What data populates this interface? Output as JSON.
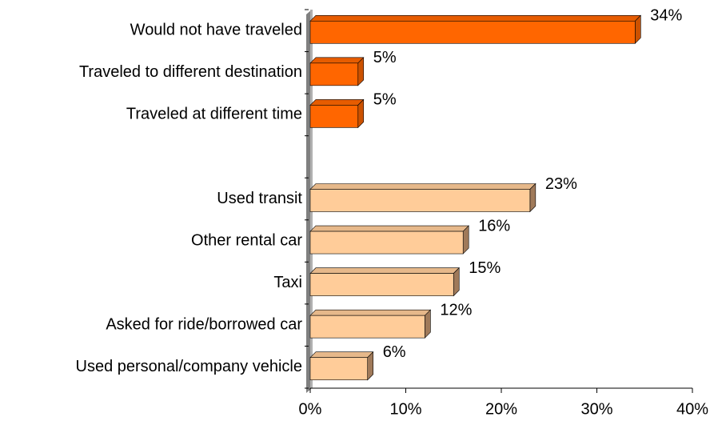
{
  "chart_data": {
    "type": "hbar",
    "categories": [
      "Would not have traveled",
      "Traveled to different destination",
      "Traveled at different time",
      null,
      "Used transit",
      "Other rental car",
      "Taxi",
      "Asked for ride/borrowed car",
      "Used personal/company vehicle"
    ],
    "values": [
      34,
      5,
      5,
      null,
      23,
      16,
      15,
      12,
      6
    ],
    "value_labels": [
      "34%",
      "5%",
      "5%",
      null,
      "23%",
      "16%",
      "15%",
      "12%",
      "6%"
    ],
    "colors": [
      "#ff6600",
      "#ff6600",
      "#ff6600",
      null,
      "#ffcc99",
      "#ffcc99",
      "#ffcc99",
      "#ffcc99",
      "#ffcc99"
    ],
    "xlim": [
      0,
      40
    ],
    "xticks": [
      {
        "value": 0,
        "label": "0%"
      },
      {
        "value": 10,
        "label": "10%"
      },
      {
        "value": 20,
        "label": "20%"
      },
      {
        "value": 30,
        "label": "30%"
      },
      {
        "value": 40,
        "label": "40%"
      }
    ]
  }
}
